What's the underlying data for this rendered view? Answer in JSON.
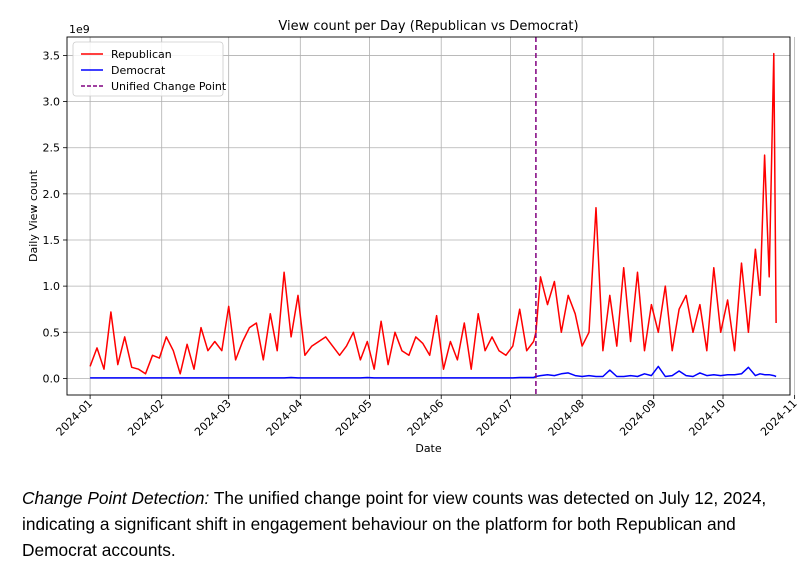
{
  "chart_data": {
    "type": "line",
    "title": "View count per Day (Republican vs Democrat)",
    "xlabel": "Date",
    "ylabel": "Daily View count",
    "y_offset_label": "1e9",
    "y_scale": 1000000000,
    "ylim": [
      -0.18,
      3.7
    ],
    "xlim": [
      "2023-12-22",
      "2024-10-30"
    ],
    "grid": true,
    "legend_position": "upper left",
    "x_ticks": [
      "2024-01",
      "2024-02",
      "2024-03",
      "2024-04",
      "2024-05",
      "2024-06",
      "2024-07",
      "2024-08",
      "2024-09",
      "2024-10",
      "2024-11"
    ],
    "y_ticks": [
      "0.0",
      "0.5",
      "1.0",
      "1.5",
      "2.0",
      "2.5",
      "3.0",
      "3.5"
    ],
    "x": [
      "2024-01-01",
      "2024-01-04",
      "2024-01-07",
      "2024-01-10",
      "2024-01-13",
      "2024-01-16",
      "2024-01-19",
      "2024-01-22",
      "2024-01-25",
      "2024-01-28",
      "2024-01-31",
      "2024-02-03",
      "2024-02-06",
      "2024-02-09",
      "2024-02-12",
      "2024-02-15",
      "2024-02-18",
      "2024-02-21",
      "2024-02-24",
      "2024-02-27",
      "2024-03-01",
      "2024-03-04",
      "2024-03-07",
      "2024-03-10",
      "2024-03-13",
      "2024-03-16",
      "2024-03-19",
      "2024-03-22",
      "2024-03-25",
      "2024-03-28",
      "2024-03-31",
      "2024-04-03",
      "2024-04-06",
      "2024-04-09",
      "2024-04-12",
      "2024-04-15",
      "2024-04-18",
      "2024-04-21",
      "2024-04-24",
      "2024-04-27",
      "2024-04-30",
      "2024-05-03",
      "2024-05-06",
      "2024-05-09",
      "2024-05-12",
      "2024-05-15",
      "2024-05-18",
      "2024-05-21",
      "2024-05-24",
      "2024-05-27",
      "2024-05-30",
      "2024-06-02",
      "2024-06-05",
      "2024-06-08",
      "2024-06-11",
      "2024-06-14",
      "2024-06-17",
      "2024-06-20",
      "2024-06-23",
      "2024-06-26",
      "2024-06-29",
      "2024-07-02",
      "2024-07-05",
      "2024-07-08",
      "2024-07-11",
      "2024-07-12",
      "2024-07-14",
      "2024-07-17",
      "2024-07-20",
      "2024-07-23",
      "2024-07-26",
      "2024-07-29",
      "2024-08-01",
      "2024-08-04",
      "2024-08-07",
      "2024-08-10",
      "2024-08-13",
      "2024-08-16",
      "2024-08-19",
      "2024-08-22",
      "2024-08-25",
      "2024-08-28",
      "2024-08-31",
      "2024-09-03",
      "2024-09-06",
      "2024-09-09",
      "2024-09-12",
      "2024-09-15",
      "2024-09-18",
      "2024-09-21",
      "2024-09-24",
      "2024-09-27",
      "2024-09-30",
      "2024-10-03",
      "2024-10-06",
      "2024-10-09",
      "2024-10-12",
      "2024-10-15",
      "2024-10-17",
      "2024-10-19",
      "2024-10-21",
      "2024-10-23",
      "2024-10-24"
    ],
    "series": [
      {
        "name": "Republican",
        "color": "#ff0000",
        "values": [
          0.13,
          0.33,
          0.1,
          0.72,
          0.15,
          0.45,
          0.12,
          0.1,
          0.05,
          0.25,
          0.22,
          0.45,
          0.3,
          0.05,
          0.37,
          0.1,
          0.55,
          0.3,
          0.4,
          0.3,
          0.78,
          0.2,
          0.4,
          0.55,
          0.6,
          0.2,
          0.7,
          0.3,
          1.15,
          0.45,
          0.9,
          0.25,
          0.35,
          0.4,
          0.45,
          0.35,
          0.25,
          0.35,
          0.5,
          0.2,
          0.4,
          0.1,
          0.62,
          0.15,
          0.5,
          0.3,
          0.25,
          0.45,
          0.38,
          0.25,
          0.68,
          0.1,
          0.4,
          0.2,
          0.6,
          0.1,
          0.7,
          0.3,
          0.45,
          0.3,
          0.25,
          0.35,
          0.75,
          0.3,
          0.4,
          0.5,
          1.1,
          0.8,
          1.05,
          0.5,
          0.9,
          0.7,
          0.35,
          0.5,
          1.85,
          0.3,
          0.9,
          0.35,
          1.2,
          0.4,
          1.15,
          0.3,
          0.8,
          0.5,
          1.0,
          0.3,
          0.75,
          0.9,
          0.5,
          0.8,
          0.3,
          1.2,
          0.5,
          0.85,
          0.3,
          1.25,
          0.5,
          1.4,
          0.9,
          2.42,
          1.1,
          3.52,
          0.6
        ]
      },
      {
        "name": "Democrat",
        "color": "#0000ff",
        "values": [
          0.005,
          0.005,
          0.005,
          0.005,
          0.005,
          0.005,
          0.005,
          0.005,
          0.005,
          0.005,
          0.005,
          0.005,
          0.005,
          0.005,
          0.005,
          0.005,
          0.005,
          0.005,
          0.005,
          0.005,
          0.005,
          0.005,
          0.005,
          0.005,
          0.005,
          0.005,
          0.005,
          0.005,
          0.005,
          0.01,
          0.005,
          0.005,
          0.005,
          0.005,
          0.005,
          0.005,
          0.005,
          0.005,
          0.005,
          0.005,
          0.01,
          0.005,
          0.005,
          0.005,
          0.005,
          0.005,
          0.005,
          0.005,
          0.005,
          0.005,
          0.005,
          0.005,
          0.005,
          0.005,
          0.005,
          0.005,
          0.005,
          0.005,
          0.005,
          0.005,
          0.005,
          0.005,
          0.01,
          0.01,
          0.01,
          0.02,
          0.03,
          0.04,
          0.03,
          0.05,
          0.06,
          0.03,
          0.02,
          0.03,
          0.02,
          0.02,
          0.09,
          0.02,
          0.02,
          0.03,
          0.02,
          0.05,
          0.03,
          0.13,
          0.02,
          0.03,
          0.08,
          0.03,
          0.02,
          0.06,
          0.03,
          0.04,
          0.03,
          0.04,
          0.04,
          0.05,
          0.12,
          0.03,
          0.05,
          0.04,
          0.04,
          0.03,
          0.02
        ]
      }
    ],
    "change_point": {
      "label": "Unified Change Point",
      "date": "2024-07-12",
      "color": "#800080"
    }
  },
  "caption": {
    "lead": "Change Point Detection:",
    "text": " The unified change point for view counts was detected on July 12, 2024, indicating a significant shift in engagement behaviour on the platform for both Republican and Democrat accounts."
  }
}
